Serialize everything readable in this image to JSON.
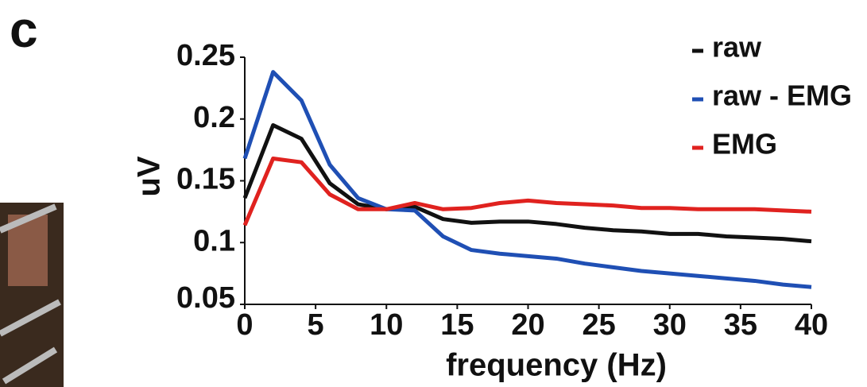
{
  "chart_data": {
    "type": "line",
    "panel_label": "c",
    "x_label": "frequency (Hz)",
    "y_label": "uV",
    "x": [
      0,
      2,
      4,
      6,
      8,
      10,
      12,
      14,
      16,
      18,
      20,
      22,
      24,
      26,
      28,
      30,
      32,
      34,
      36,
      38,
      40
    ],
    "series": [
      {
        "name": "raw",
        "color": "#111111",
        "values": [
          0.136,
          0.195,
          0.184,
          0.148,
          0.131,
          0.127,
          0.129,
          0.119,
          0.116,
          0.117,
          0.117,
          0.115,
          0.112,
          0.11,
          0.109,
          0.107,
          0.107,
          0.105,
          0.104,
          0.103,
          0.101
        ]
      },
      {
        "name": "raw - EMG",
        "color": "#1f4fb4",
        "values": [
          0.168,
          0.238,
          0.215,
          0.163,
          0.136,
          0.127,
          0.126,
          0.105,
          0.094,
          0.091,
          0.089,
          0.087,
          0.083,
          0.08,
          0.077,
          0.075,
          0.073,
          0.071,
          0.069,
          0.066,
          0.064
        ]
      },
      {
        "name": "EMG",
        "color": "#e0221f",
        "values": [
          0.114,
          0.168,
          0.165,
          0.139,
          0.127,
          0.127,
          0.132,
          0.127,
          0.128,
          0.132,
          0.134,
          0.132,
          0.131,
          0.13,
          0.128,
          0.128,
          0.127,
          0.127,
          0.127,
          0.126,
          0.125
        ]
      }
    ],
    "xlim": [
      0,
      40
    ],
    "xticks": [
      0,
      5,
      10,
      15,
      20,
      25,
      30,
      35,
      40
    ],
    "ylim": [
      0.05,
      0.25
    ],
    "yticks": [
      0.05,
      0.1,
      0.15,
      0.2,
      0.25
    ],
    "legend": "upper right"
  }
}
